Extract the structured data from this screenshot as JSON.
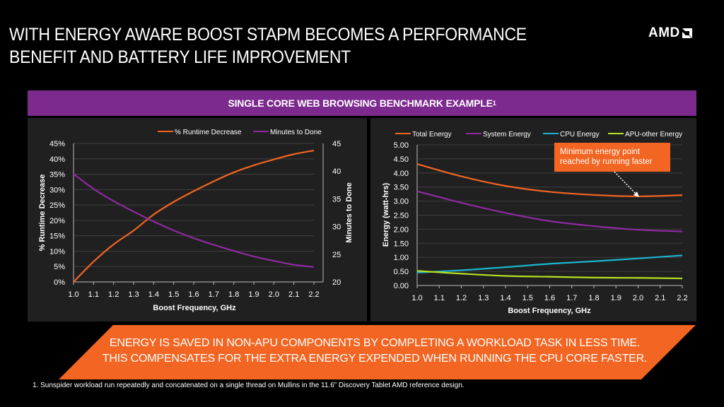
{
  "header": {
    "title_line1": "WITH ENERGY AWARE BOOST STAPM BECOMES A PERFORMANCE",
    "title_line2": "BENEFIT AND BATTERY LIFE IMPROVEMENT",
    "logo_text": "AMD",
    "logo_icon": "amd-arrow-icon"
  },
  "banner": {
    "text": "SINGLE CORE WEB BROWSING BENCHMARK EXAMPLE",
    "superscript": "1"
  },
  "colors": {
    "orange": "#f26522",
    "purple": "#8e2aa0",
    "cyan": "#19b5cf",
    "lime": "#b7e021",
    "banner": "#7d2a8e",
    "panel": "#202020"
  },
  "callout": {
    "line1": "Minimum energy point",
    "line2": "reached by running faster"
  },
  "message": {
    "line1": "ENERGY IS SAVED IN NON-APU COMPONENTS BY COMPLETING A WORKLOAD TASK IN LESS TIME.",
    "line2": "THIS COMPENSATES FOR THE EXTRA ENERGY EXPENDED WHEN RUNNING THE CPU CORE FASTER."
  },
  "footnote": "1. Sunspider workload run repeatedly and concatenated on a single thread on Mullins in the 11.6” Discovery Tablet AMD reference design.",
  "chart_data": [
    {
      "type": "line",
      "title": "",
      "xlabel": "Boost Frequency, GHz",
      "ylabel": "% Runtime Decrease",
      "y2label": "Minutes to Done",
      "x": [
        1.0,
        1.1,
        1.2,
        1.3,
        1.4,
        1.5,
        1.6,
        1.7,
        1.8,
        1.9,
        2.0,
        2.1,
        2.2
      ],
      "x_ticks": [
        "1.0",
        "1.1",
        "1.2",
        "1.3",
        "1.4",
        "1.5",
        "1.6",
        "1.7",
        "1.8",
        "1.9",
        "2.0",
        "2.1",
        "2.2"
      ],
      "ylim": [
        0,
        45
      ],
      "y_ticks": [
        "0%",
        "5%",
        "10%",
        "15%",
        "20%",
        "25%",
        "30%",
        "35%",
        "40%",
        "45%"
      ],
      "y2lim": [
        20,
        45
      ],
      "y2_ticks": [
        "20",
        "25",
        "30",
        "35",
        "40",
        "45"
      ],
      "grid": true,
      "legend": "top-right",
      "series": [
        {
          "name": "% Runtime Decrease",
          "color": "#f26522",
          "axis": "left",
          "values": [
            0,
            6.6,
            12.2,
            16.7,
            21.9,
            26.0,
            29.5,
            32.7,
            35.6,
            37.9,
            39.8,
            41.5,
            42.7
          ]
        },
        {
          "name": "Minutes to Done",
          "color": "#8e2aa0",
          "axis": "right",
          "values": [
            39.5,
            36.8,
            34.6,
            32.7,
            30.9,
            29.3,
            27.9,
            26.7,
            25.6,
            24.6,
            23.8,
            23.1,
            22.7
          ]
        }
      ]
    },
    {
      "type": "line",
      "title": "",
      "xlabel": "Boost Frequency, GHz",
      "ylabel": "Energy (watt-hrs)",
      "x": [
        1.0,
        1.2,
        1.4,
        1.6,
        1.8,
        2.0,
        2.2
      ],
      "x_ticks": [
        "1.0",
        "1.1",
        "1.2",
        "1.3",
        "1.4",
        "1.5",
        "1.6",
        "1.7",
        "1.8",
        "1.9",
        "2.0",
        "2.1",
        "2.2"
      ],
      "ylim": [
        0,
        5
      ],
      "y_ticks": [
        "0.00",
        "0.50",
        "1.00",
        "1.50",
        "2.00",
        "2.50",
        "3.00",
        "3.50",
        "4.00",
        "4.50",
        "5.00"
      ],
      "grid": true,
      "legend": "top",
      "annotation": "Minimum energy point reached by running faster",
      "series": [
        {
          "name": "Total Energy",
          "color": "#f26522",
          "values": [
            4.32,
            3.88,
            3.54,
            3.33,
            3.22,
            3.17,
            3.21
          ]
        },
        {
          "name": "System Energy",
          "color": "#8e2aa0",
          "values": [
            3.35,
            2.94,
            2.58,
            2.29,
            2.11,
            1.98,
            1.92
          ]
        },
        {
          "name": "CPU Energy",
          "color": "#19b5cf",
          "values": [
            0.46,
            0.54,
            0.65,
            0.77,
            0.86,
            0.96,
            1.07
          ]
        },
        {
          "name": "APU-other Energy",
          "color": "#b7e021",
          "values": [
            0.52,
            0.42,
            0.34,
            0.31,
            0.28,
            0.27,
            0.25
          ]
        }
      ]
    }
  ]
}
